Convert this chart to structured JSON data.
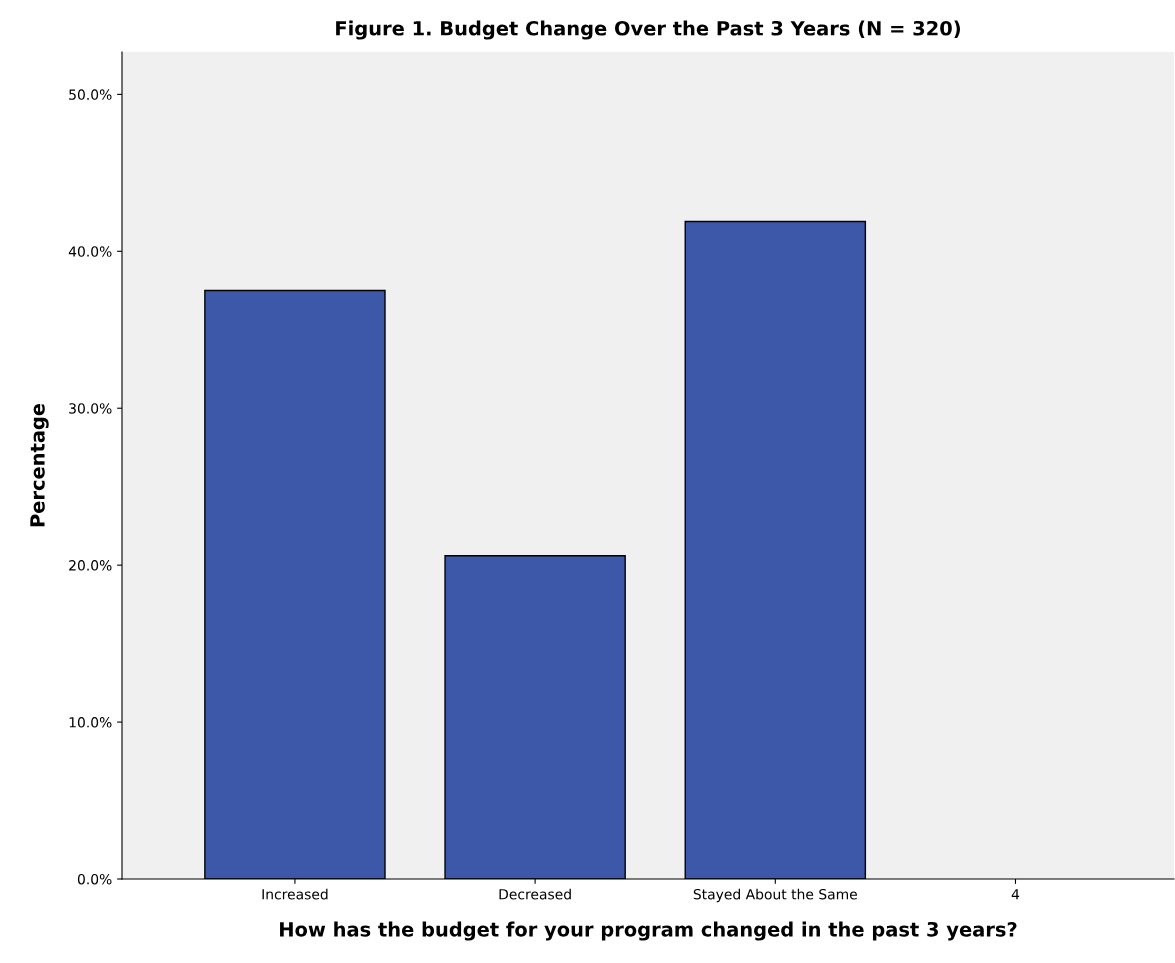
{
  "chart_data": {
    "type": "bar",
    "title": "Figure 1. Budget Change Over the Past 3 Years (N = 320)",
    "xlabel": "How has the budget for your program changed in the past 3 years?",
    "ylabel": "Percentage",
    "categories": [
      "Increased",
      "Decreased",
      "Stayed About the Same",
      "4"
    ],
    "values": [
      37.5,
      20.6,
      41.9,
      null
    ],
    "color": "#3d58a9",
    "ylim": [
      0,
      52.7
    ],
    "yticks": [
      {
        "value": 0,
        "label": "0.0%"
      },
      {
        "value": 10,
        "label": "10.0%"
      },
      {
        "value": 20,
        "label": "20.0%"
      },
      {
        "value": 30,
        "label": "30.0%"
      },
      {
        "value": 40,
        "label": "40.0%"
      },
      {
        "value": 50,
        "label": "50.0%"
      }
    ],
    "grid": false
  }
}
